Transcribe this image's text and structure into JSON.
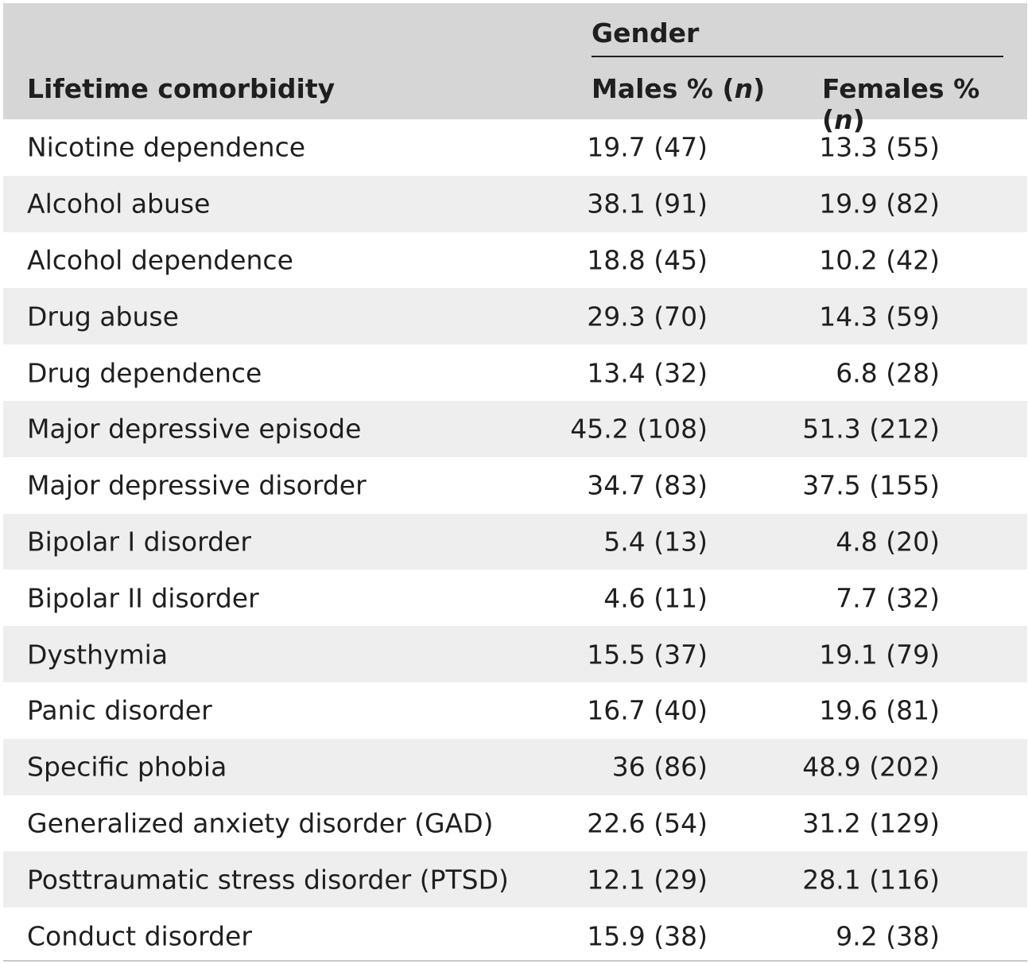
{
  "header": {
    "group_label": "Gender",
    "col_condition": "Lifetime comorbidity",
    "col_males_prefix": "Males % (",
    "col_males_n": "n",
    "col_females_prefix": "Females % (",
    "col_females_n": "n",
    "closing_paren": ")"
  },
  "rows": [
    {
      "condition": "Nicotine dependence",
      "males": "19.7 (47)",
      "females": "13.3 (55)"
    },
    {
      "condition": "Alcohol abuse",
      "males": "38.1 (91)",
      "females": "19.9 (82)"
    },
    {
      "condition": "Alcohol dependence",
      "males": "18.8 (45)",
      "females": "10.2 (42)"
    },
    {
      "condition": "Drug abuse",
      "males": "29.3 (70)",
      "females": "14.3 (59)"
    },
    {
      "condition": "Drug dependence",
      "males": "13.4 (32)",
      "females": "6.8 (28)"
    },
    {
      "condition": "Major depressive episode",
      "males": "45.2 (108)",
      "females": "51.3 (212)"
    },
    {
      "condition": "Major depressive disorder",
      "males": "34.7 (83)",
      "females": "37.5 (155)"
    },
    {
      "condition": "Bipolar I disorder",
      "males": "5.4 (13)",
      "females": "4.8 (20)"
    },
    {
      "condition": "Bipolar II disorder",
      "males": "4.6 (11)",
      "females": "7.7 (32)"
    },
    {
      "condition": "Dysthymia",
      "males": "15.5 (37)",
      "females": "19.1 (79)"
    },
    {
      "condition": "Panic disorder",
      "males": "16.7 (40)",
      "females": "19.6 (81)"
    },
    {
      "condition": "Specific phobia",
      "males": "36 (86)",
      "females": "48.9 (202)"
    },
    {
      "condition": "Generalized anxiety disorder (GAD)",
      "males": "22.6 (54)",
      "females": "31.2 (129)"
    },
    {
      "condition": "Posttraumatic stress disorder (PTSD)",
      "males": "12.1 (29)",
      "females": "28.1 (116)"
    },
    {
      "condition": "Conduct disorder",
      "males": "15.9 (38)",
      "females": "9.2 (38)"
    }
  ]
}
